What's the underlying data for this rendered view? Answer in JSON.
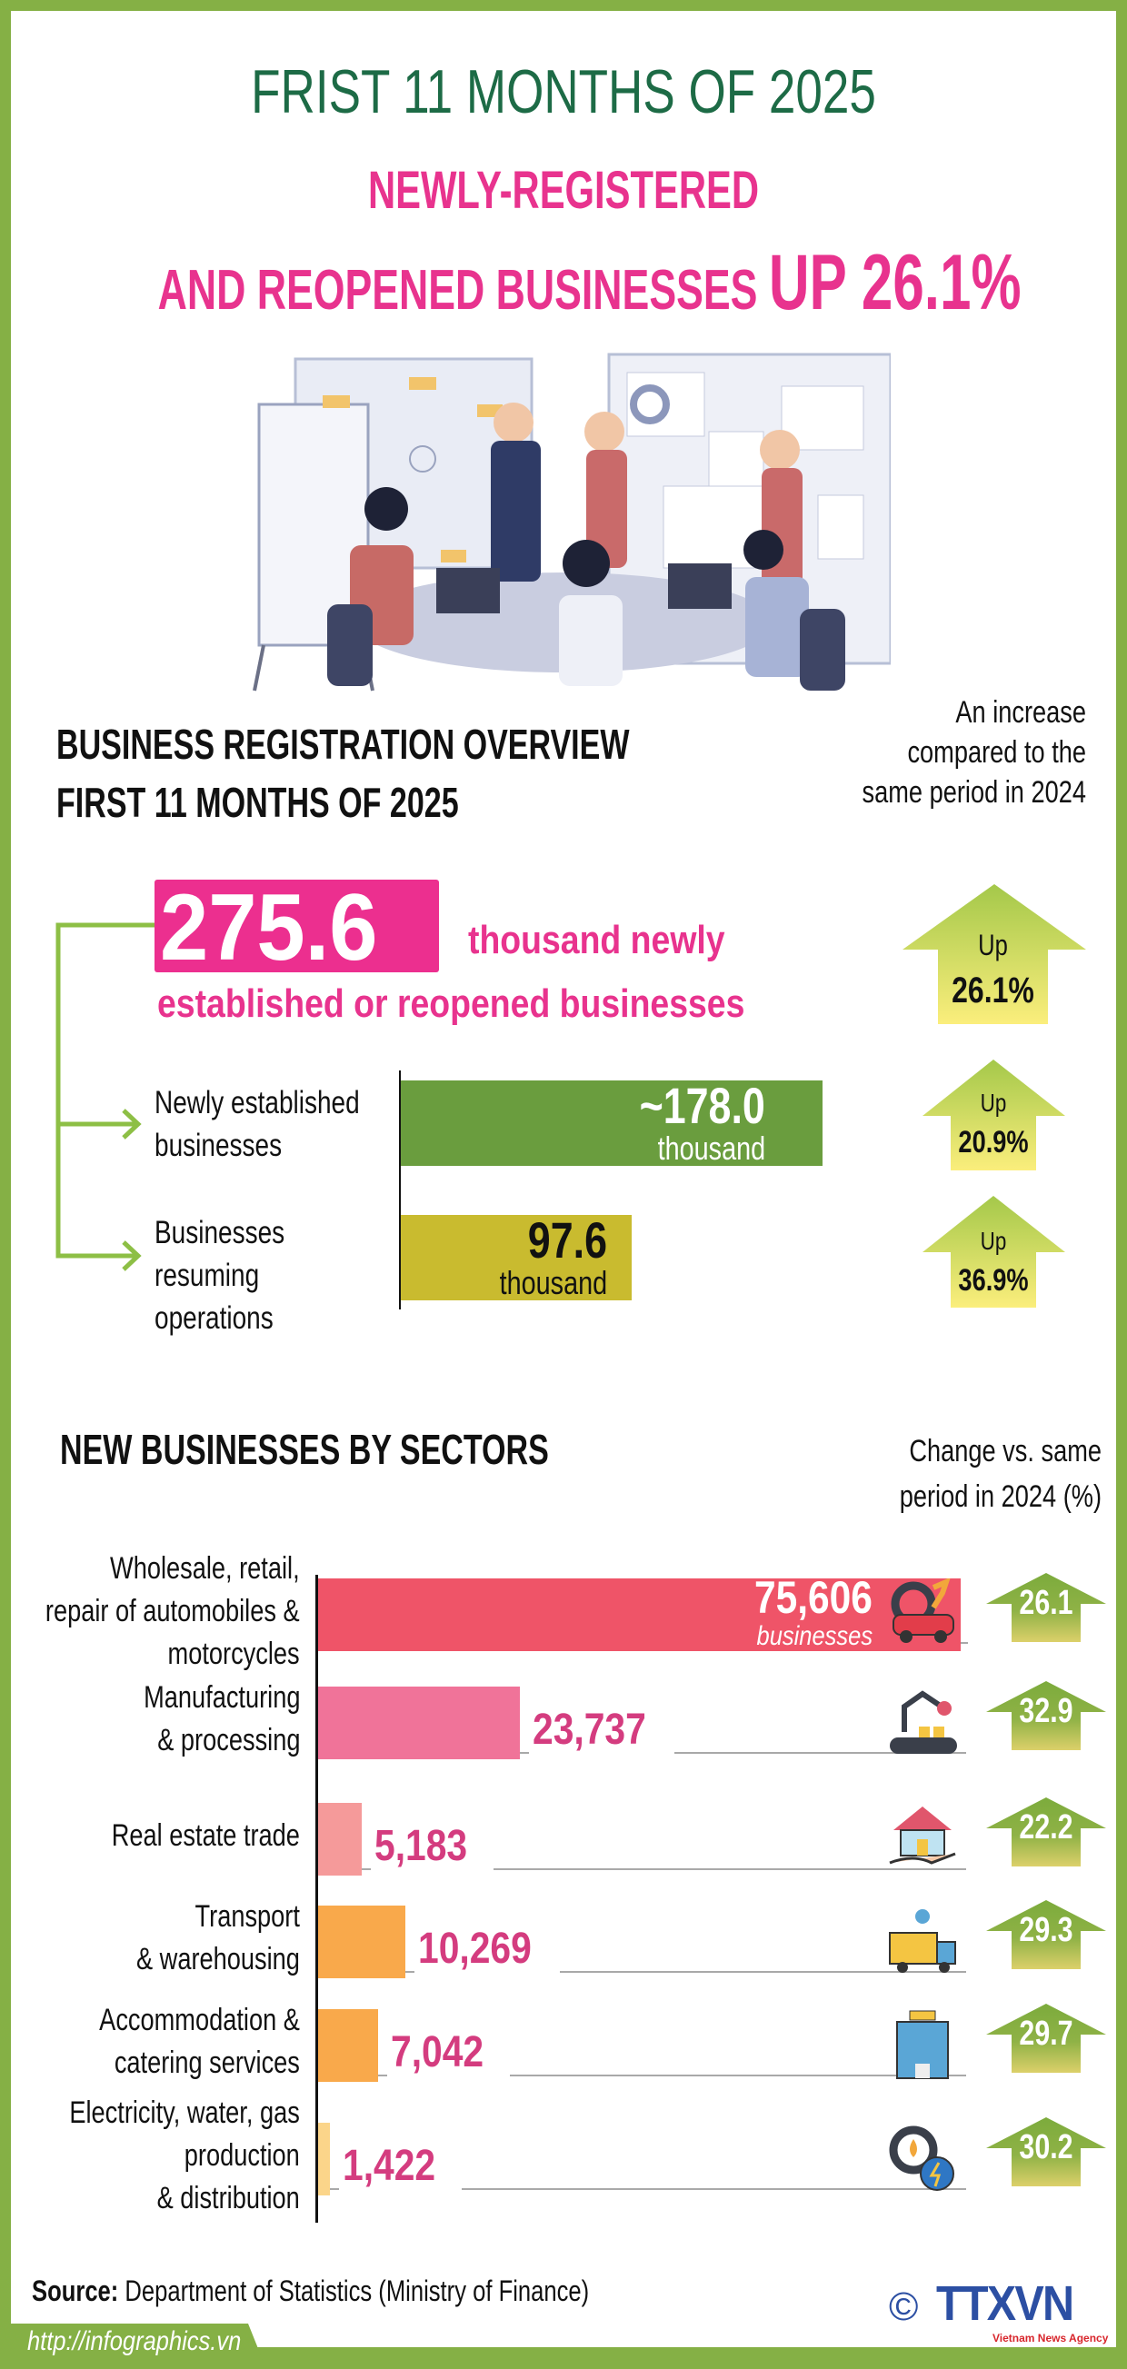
{
  "header": {
    "kicker": "FRIST 11 MONTHS OF 2025",
    "title_line1": "NEWLY-REGISTERED",
    "title_line2": "AND REOPENED BUSINESSES",
    "title_highlight": "UP 26.1%"
  },
  "overview": {
    "heading_line1": "BUSINESS REGISTRATION OVERVIEW",
    "heading_line2": "FIRST 11 MONTHS OF 2025",
    "comparison_note": "An increase compared to the same period in 2024",
    "total": {
      "value": "275.6",
      "text_line1": "thousand newly",
      "text_line2": "established or reopened businesses",
      "change_label": "Up",
      "change_value": "26.1%"
    },
    "items": [
      {
        "label_line1": "Newly  established",
        "label_line2": "businesses",
        "label_line3": "",
        "value": "~178.0",
        "unit": "thousand",
        "amount": 178.0,
        "color": "#6a9d3e",
        "value_color": "#ffffff",
        "change_label": "Up",
        "change_value": "20.9%"
      },
      {
        "label_line1": "Businesses",
        "label_line2": "resuming",
        "label_line3": "operations",
        "value": "97.6",
        "unit": "thousand",
        "amount": 97.6,
        "color": "#c9bb2f",
        "value_color": "#111111",
        "change_label": "Up",
        "change_value": "36.9%"
      }
    ]
  },
  "chart_data": {
    "type": "bar",
    "orientation": "horizontal",
    "title": "NEW BUSINESSES BY SECTORS",
    "change_header": "Change vs. same period in 2024 (%)",
    "categories": [
      "Wholesale, retail, repair of automobiles & motorcycles",
      "Manufacturing & processing",
      "Real estate trade",
      "Transport & warehousing",
      "Accommodation & catering services",
      "Electricity, water, gas production & distribution"
    ],
    "label_lines": [
      [
        "Wholesale, retail,",
        "repair of automobiles &",
        "motorcycles"
      ],
      [
        "Manufacturing",
        "& processing"
      ],
      [
        "Real estate trade"
      ],
      [
        "Transport",
        "& warehousing"
      ],
      [
        "Accommodation &",
        "catering services"
      ],
      [
        "Electricity, water, gas",
        "production",
        "& distribution"
      ]
    ],
    "values": [
      75606,
      23737,
      5183,
      10269,
      7042,
      1422
    ],
    "value_labels": [
      "75,606",
      "23,737",
      "5,183",
      "10,269",
      "7,042",
      "1,422"
    ],
    "first_value_unit": "businesses",
    "change_pct": [
      26.1,
      32.9,
      22.2,
      29.3,
      29.7,
      30.2
    ],
    "change_labels": [
      "26.1",
      "32.9",
      "22.2",
      "29.3",
      "29.7",
      "30.2"
    ],
    "icons": [
      "car-repair-icon",
      "factory-robot-icon",
      "house-in-hand-icon",
      "delivery-truck-icon",
      "hotel-icon",
      "energy-gear-icon"
    ],
    "colors": [
      "#ef5468",
      "#f07399",
      "#f59a9a",
      "#f9a94b",
      "#f9a94b",
      "#fbd58a"
    ],
    "grid": false,
    "legend": "none"
  },
  "footer": {
    "source_label": "Source:",
    "source_text": " Department of Statistics (Ministry of Finance)",
    "logo_text": "TTXVN",
    "logo_sub": "Vietnam News Agency",
    "copyright": "©",
    "url": "http://infographics.vn"
  },
  "colors": {
    "frame": "#85b045",
    "pink": "#e8338e",
    "dark_green": "#1d6b46"
  }
}
